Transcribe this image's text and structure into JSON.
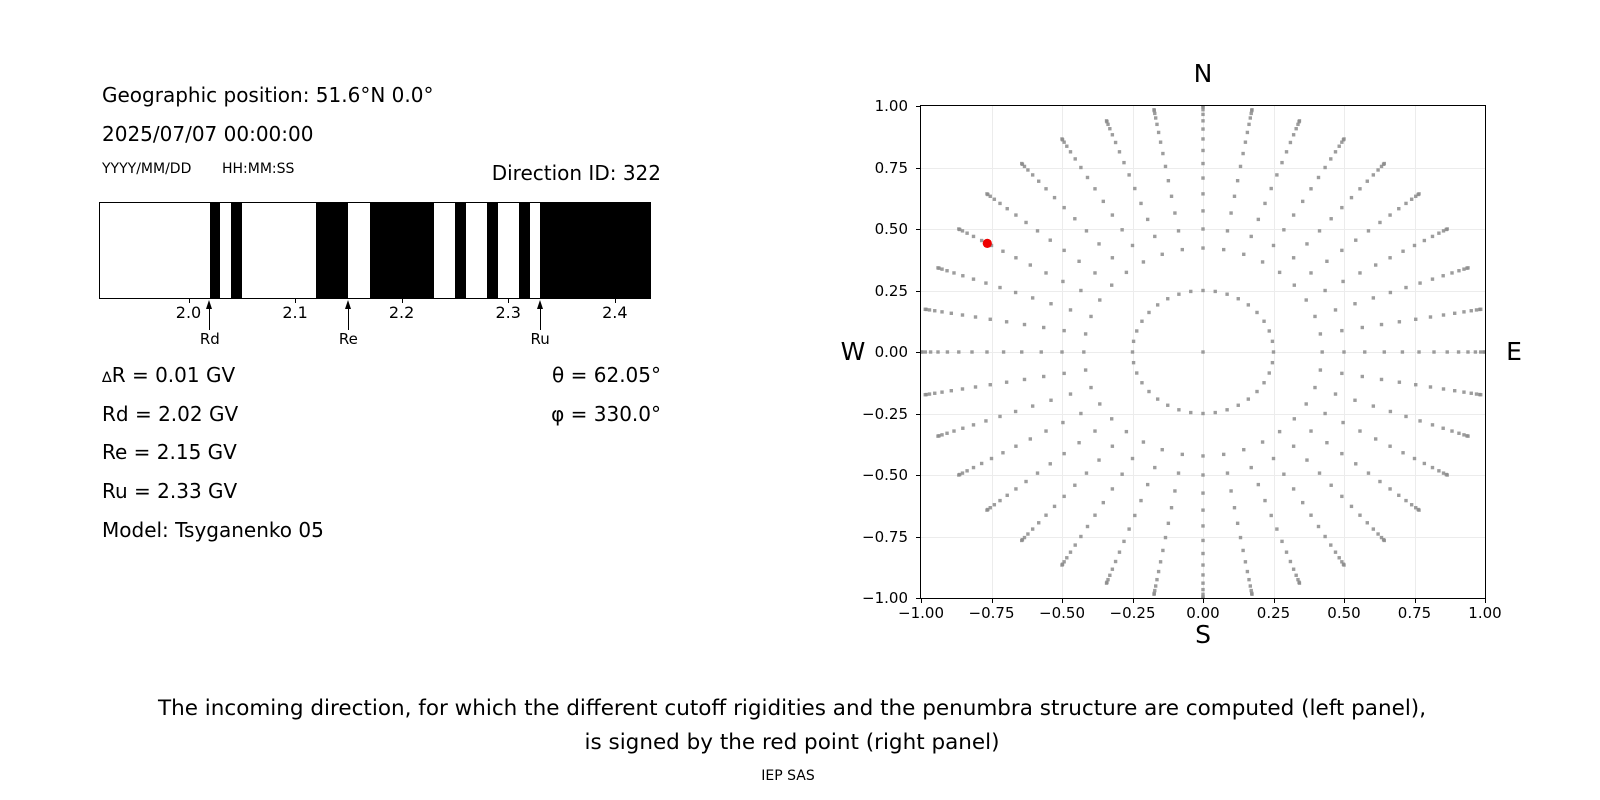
{
  "header": {
    "geo_position": "Geographic position: 51.6°N 0.0°",
    "datetime": "2025/07/07 00:00:00",
    "date_format": "YYYY/MM/DD",
    "time_format": "HH:MM:SS",
    "direction_id": "Direction ID: 322"
  },
  "values": {
    "delta_symbol": "∆",
    "delta_rest": "R = 0.01 GV",
    "rd": "Rd = 2.02 GV",
    "re": "Re = 2.15 GV",
    "ru": "Ru = 2.33 GV",
    "model": "Model: Tsyganenko 05",
    "theta": "θ = 62.05°",
    "phi": "φ = 330.0°"
  },
  "caption": {
    "line1": "The incoming direction, for which the different cutoff rigidities and the penumbra structure are computed (left panel),",
    "line2": "is signed by the red point (right panel)",
    "credit": "IEP SAS"
  },
  "colors": {
    "text": "#000000",
    "bar": "#000000",
    "dot": "#8c8c8c",
    "grid": "#ececec",
    "red_point": "#ee0000"
  },
  "chart_data": [
    {
      "id": "penumbra-barcode",
      "type": "barcode",
      "x_unit": "GV",
      "x_range": [
        1.917,
        2.433
      ],
      "black_bands": [
        [
          2.02,
          2.03
        ],
        [
          2.04,
          2.05
        ],
        [
          2.12,
          2.15
        ],
        [
          2.17,
          2.23
        ],
        [
          2.25,
          2.26
        ],
        [
          2.28,
          2.29
        ],
        [
          2.31,
          2.32
        ],
        [
          2.33,
          2.433
        ]
      ],
      "x_ticks": [
        {
          "v": 2.0,
          "label": "2.0"
        },
        {
          "v": 2.1,
          "label": "2.1"
        },
        {
          "v": 2.2,
          "label": "2.2"
        },
        {
          "v": 2.3,
          "label": "2.3"
        },
        {
          "v": 2.4,
          "label": "2.4"
        }
      ],
      "arrows": [
        {
          "label": "Rd",
          "v": 2.02
        },
        {
          "label": "Re",
          "v": 2.15
        },
        {
          "label": "Ru",
          "v": 2.33
        }
      ],
      "cutoffs": {
        "delta_R_GV": 0.01,
        "Rd_GV": 2.02,
        "Re_GV": 2.15,
        "Ru_GV": 2.33,
        "model": "Tsyganenko 05"
      }
    },
    {
      "id": "direction-map",
      "type": "scatter",
      "xlim": [
        -1,
        1
      ],
      "ylim": [
        -1,
        1
      ],
      "grid": true,
      "projection": "r = sin(zenith), bearing clockwise from N",
      "x_ticks": [
        {
          "v": -1.0,
          "label": "−1.00"
        },
        {
          "v": -0.75,
          "label": "−0.75"
        },
        {
          "v": -0.5,
          "label": "−0.50"
        },
        {
          "v": -0.25,
          "label": "−0.25"
        },
        {
          "v": 0.0,
          "label": "0.00"
        },
        {
          "v": 0.25,
          "label": "0.25"
        },
        {
          "v": 0.5,
          "label": "0.50"
        },
        {
          "v": 0.75,
          "label": "0.75"
        },
        {
          "v": 1.0,
          "label": "1.00"
        }
      ],
      "y_ticks": [
        {
          "v": 1.0,
          "label": "1.00"
        },
        {
          "v": 0.75,
          "label": "0.75"
        },
        {
          "v": 0.5,
          "label": "0.50"
        },
        {
          "v": 0.25,
          "label": "0.25"
        },
        {
          "v": 0.0,
          "label": "0.00"
        },
        {
          "v": -0.25,
          "label": "−0.25"
        },
        {
          "v": -0.5,
          "label": "−0.50"
        },
        {
          "v": -0.75,
          "label": "−0.75"
        },
        {
          "v": -1.0,
          "label": "−1.00"
        }
      ],
      "compass": {
        "top": "N",
        "bottom": "S",
        "left": "W",
        "right": "E"
      },
      "spokes": {
        "azimuth_start_deg": 0,
        "azimuth_step_deg": 10,
        "azimuth_count": 36,
        "zenith_deg": [
          25,
          30,
          35,
          40,
          45,
          50,
          55,
          60,
          65,
          70,
          75,
          80,
          85,
          90
        ]
      },
      "inner_ring": {
        "radius": 0.25,
        "count": 36
      },
      "center_point": {
        "x": 0,
        "y": 0
      },
      "red_point": {
        "x": -0.765,
        "y": 0.4415,
        "zenith_deg": 62.05,
        "bearing_deg": 300
      }
    }
  ]
}
